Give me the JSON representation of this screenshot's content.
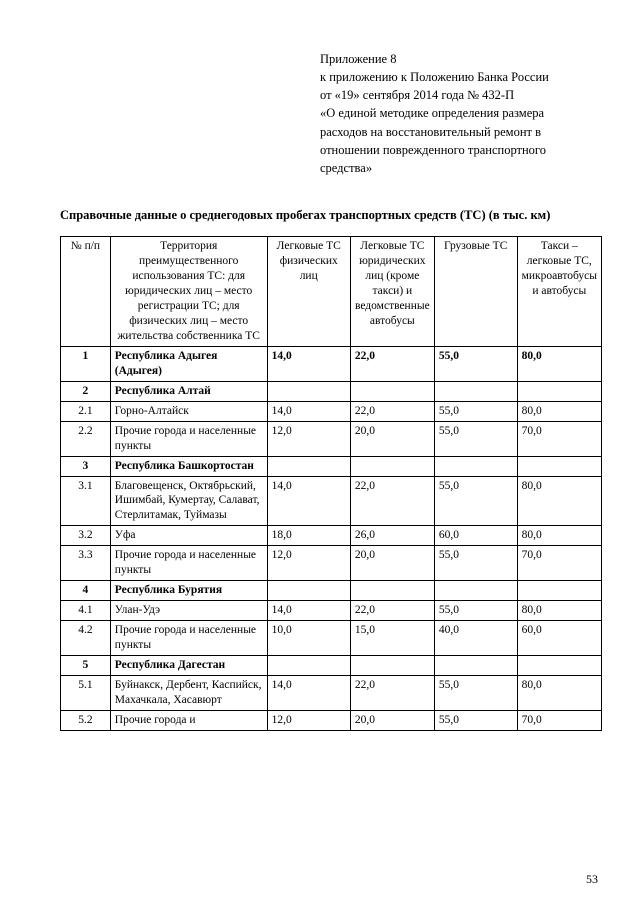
{
  "header": {
    "line1": "Приложение 8",
    "line2": "к приложению к Положению Банка России",
    "line3": "от «19» сентября 2014 года № 432-П",
    "line4": "«О единой методике определения размера",
    "line5": "расходов на восстановительный ремонт в",
    "line6": "отношении поврежденного транспортного",
    "line7": "средства»"
  },
  "title": "Справочные данные о среднегодовых пробегах транспортных средств (ТС) (в тыс. км)",
  "columns": {
    "c0": "№ п/п",
    "c1": "Территория преимущественного использования ТС: для юридических лиц – место регистрации ТС; для физических лиц – место жительства собственника ТС",
    "c2": "Легковые ТС физических лиц",
    "c3": "Легковые ТС юридических лиц (кроме такси) и ведомственные автобусы",
    "c4": "Грузовые ТС",
    "c5": "Такси – легковые ТС, микроавтобусы и автобусы"
  },
  "rows": [
    {
      "num": "1",
      "terr": "Республика Адыгея (Адыгея)",
      "v1": "14,0",
      "v2": "22,0",
      "v3": "55,0",
      "v4": "80,0",
      "bold": true
    },
    {
      "num": "2",
      "terr": "Республика Алтай",
      "v1": "",
      "v2": "",
      "v3": "",
      "v4": "",
      "bold": true
    },
    {
      "num": "2.1",
      "terr": "Горно-Алтайск",
      "v1": "14,0",
      "v2": "22,0",
      "v3": "55,0",
      "v4": "80,0",
      "bold": false
    },
    {
      "num": "2.2",
      "terr": "Прочие города и населенные пункты",
      "v1": "12,0",
      "v2": "20,0",
      "v3": "55,0",
      "v4": "70,0",
      "bold": false
    },
    {
      "num": "3",
      "terr": "Республика Башкортостан",
      "v1": "",
      "v2": "",
      "v3": "",
      "v4": "",
      "bold": true
    },
    {
      "num": "3.1",
      "terr": "Благовещенск, Октябрьский, Ишимбай, Кумертау, Салават, Стерлитамак, Туймазы",
      "v1": "14,0",
      "v2": "22,0",
      "v3": "55,0",
      "v4": "80,0",
      "bold": false
    },
    {
      "num": "3.2",
      "terr": "Уфа",
      "v1": "18,0",
      "v2": "26,0",
      "v3": "60,0",
      "v4": "80,0",
      "bold": false
    },
    {
      "num": "3.3",
      "terr": "Прочие города и населенные пункты",
      "v1": "12,0",
      "v2": "20,0",
      "v3": "55,0",
      "v4": "70,0",
      "bold": false
    },
    {
      "num": "4",
      "terr": "Республика Бурятия",
      "v1": "",
      "v2": "",
      "v3": "",
      "v4": "",
      "bold": true
    },
    {
      "num": "4.1",
      "terr": "Улан-Удэ",
      "v1": "14,0",
      "v2": "22,0",
      "v3": "55,0",
      "v4": "80,0",
      "bold": false
    },
    {
      "num": "4.2",
      "terr": "Прочие города и населенные пункты",
      "v1": "10,0",
      "v2": "15,0",
      "v3": "40,0",
      "v4": "60,0",
      "bold": false
    },
    {
      "num": "5",
      "terr": "Республика Дагестан",
      "v1": "",
      "v2": "",
      "v3": "",
      "v4": "",
      "bold": true
    },
    {
      "num": "5.1",
      "terr": "Буйнакск, Дербент, Каспийск, Махачкала, Хасавюрт",
      "v1": "14,0",
      "v2": "22,0",
      "v3": "55,0",
      "v4": "80,0",
      "bold": false
    },
    {
      "num": "5.2",
      "terr": "Прочие города и",
      "v1": "12,0",
      "v2": "20,0",
      "v3": "55,0",
      "v4": "70,0",
      "bold": false
    }
  ],
  "pageNumber": "53"
}
